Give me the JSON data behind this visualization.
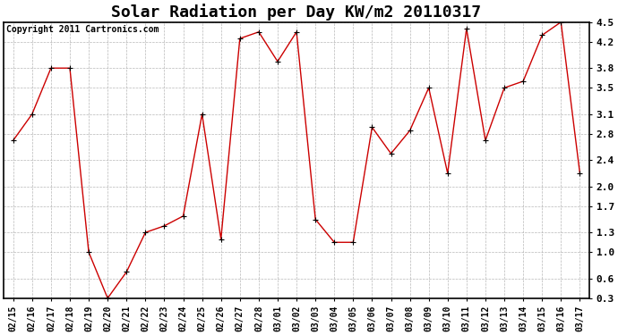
{
  "title": "Solar Radiation per Day KW/m2 20110317",
  "copyright": "Copyright 2011 Cartronics.com",
  "dates": [
    "02/15",
    "02/16",
    "02/17",
    "02/18",
    "02/19",
    "02/20",
    "02/21",
    "02/22",
    "02/23",
    "02/24",
    "02/25",
    "02/26",
    "02/27",
    "02/28",
    "03/01",
    "03/02",
    "03/03",
    "03/04",
    "03/05",
    "03/06",
    "03/07",
    "03/08",
    "03/09",
    "03/10",
    "03/11",
    "03/12",
    "03/13",
    "03/14",
    "03/15",
    "03/16",
    "03/17"
  ],
  "values": [
    2.7,
    3.1,
    3.8,
    3.8,
    1.0,
    0.3,
    0.7,
    1.3,
    1.4,
    1.55,
    3.1,
    1.2,
    4.25,
    4.35,
    3.9,
    4.35,
    1.5,
    1.15,
    1.15,
    2.9,
    2.5,
    2.85,
    3.5,
    2.2,
    4.4,
    2.7,
    3.5,
    3.6,
    4.3,
    4.5,
    2.2
  ],
  "line_color": "#cc0000",
  "marker": "s",
  "marker_size": 3,
  "ylim": [
    0.3,
    4.5
  ],
  "yticks": [
    0.3,
    0.6,
    1.0,
    1.3,
    1.7,
    2.0,
    2.4,
    2.8,
    3.1,
    3.5,
    3.8,
    4.2,
    4.5
  ],
  "ytick_labels": [
    "0.3",
    "0.6",
    "1.0",
    "1.3",
    "1.7",
    "2.0",
    "2.4",
    "2.8",
    "3.1",
    "3.5",
    "3.8",
    "4.2",
    "4.5"
  ],
  "bg_color": "#ffffff",
  "plot_bg": "#ffffff",
  "grid_color": "#b0b0b0",
  "title_fontsize": 13,
  "copyright_fontsize": 7,
  "tick_fontsize": 7,
  "ytick_fontsize": 8
}
